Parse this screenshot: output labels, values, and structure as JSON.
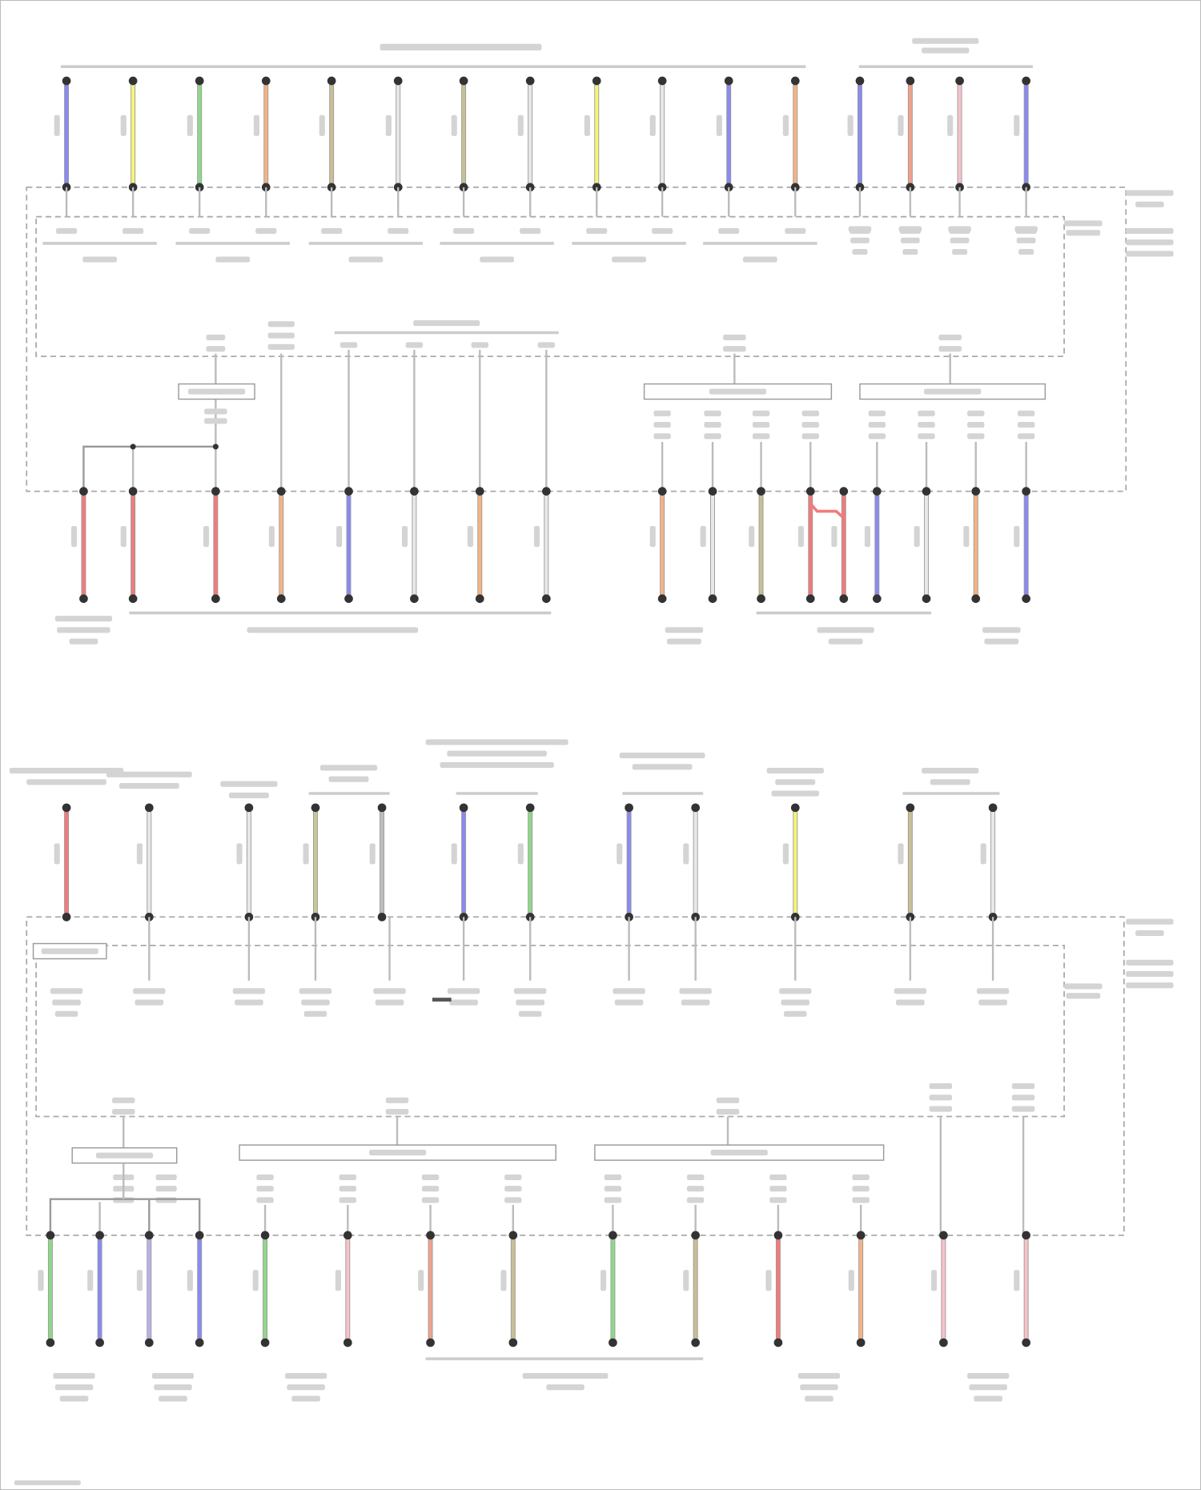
{
  "colors": {
    "blue": "#8a8af0",
    "yellow": "#f4f47a",
    "green": "#8fd88a",
    "orange": "#f5b383",
    "tan": "#c9bf96",
    "white": "#e8e8e8",
    "salmon": "#f2a08a",
    "pink": "#f7c2c8",
    "red": "#f27b7b",
    "lavender": "#b7b2ea",
    "gray": "#bdbdbd",
    "olive": "#c8c896"
  },
  "diagram": {
    "top_upper_wires": [
      "blue",
      "yellow",
      "green",
      "orange",
      "tan",
      "white",
      "tan",
      "white",
      "yellow",
      "white",
      "blue",
      "orange",
      "blue",
      "salmon",
      "pink",
      "blue"
    ],
    "top_lower_wires": [
      "red",
      "red",
      "red",
      "orange",
      "blue",
      "white",
      "orange",
      "white",
      "orange",
      "white",
      "tan",
      "red",
      "red",
      "blue",
      "white",
      "orange",
      "blue"
    ],
    "bottom_upper_wires": [
      "red",
      "white",
      "white",
      "olive",
      "gray",
      "blue",
      "green",
      "blue",
      "white",
      "yellow",
      "tan",
      "white"
    ],
    "bottom_lower_wires": [
      "green",
      "blue",
      "lavender",
      "blue",
      "green",
      "pink",
      "salmon",
      "tan",
      "green",
      "tan",
      "red",
      "orange",
      "pink",
      "pink"
    ]
  }
}
